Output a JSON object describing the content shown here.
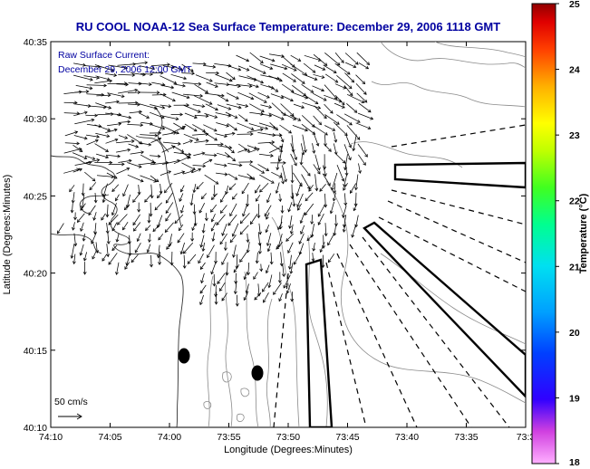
{
  "chart_data": {
    "type": "vector-field-map",
    "title": "RU COOL  NOAA-12  Sea Surface Temperature:  December 29, 2006 1118 GMT",
    "annotations": {
      "line1": "Raw Surface Current:",
      "line2": "December 29, 2006 12:00 GMT",
      "scale_label": "50 cm/s"
    },
    "xlabel": "Longitude (Degrees:Minutes)",
    "ylabel": "Latitude (Degrees:Minutes)",
    "x_ticks": [
      "74:10",
      "74:05",
      "74:00",
      "73:55",
      "73:50",
      "73:45",
      "73:40",
      "73:35",
      "73:3"
    ],
    "y_ticks": [
      "40:35",
      "40:30",
      "40:25",
      "40:20",
      "40:15",
      "40:10"
    ],
    "colorbar": {
      "label": "Temperature (°C)",
      "ticks": [
        "25",
        "24",
        "23",
        "22",
        "21",
        "20",
        "19",
        "18"
      ],
      "range": [
        18,
        25
      ]
    },
    "grid": false
  }
}
